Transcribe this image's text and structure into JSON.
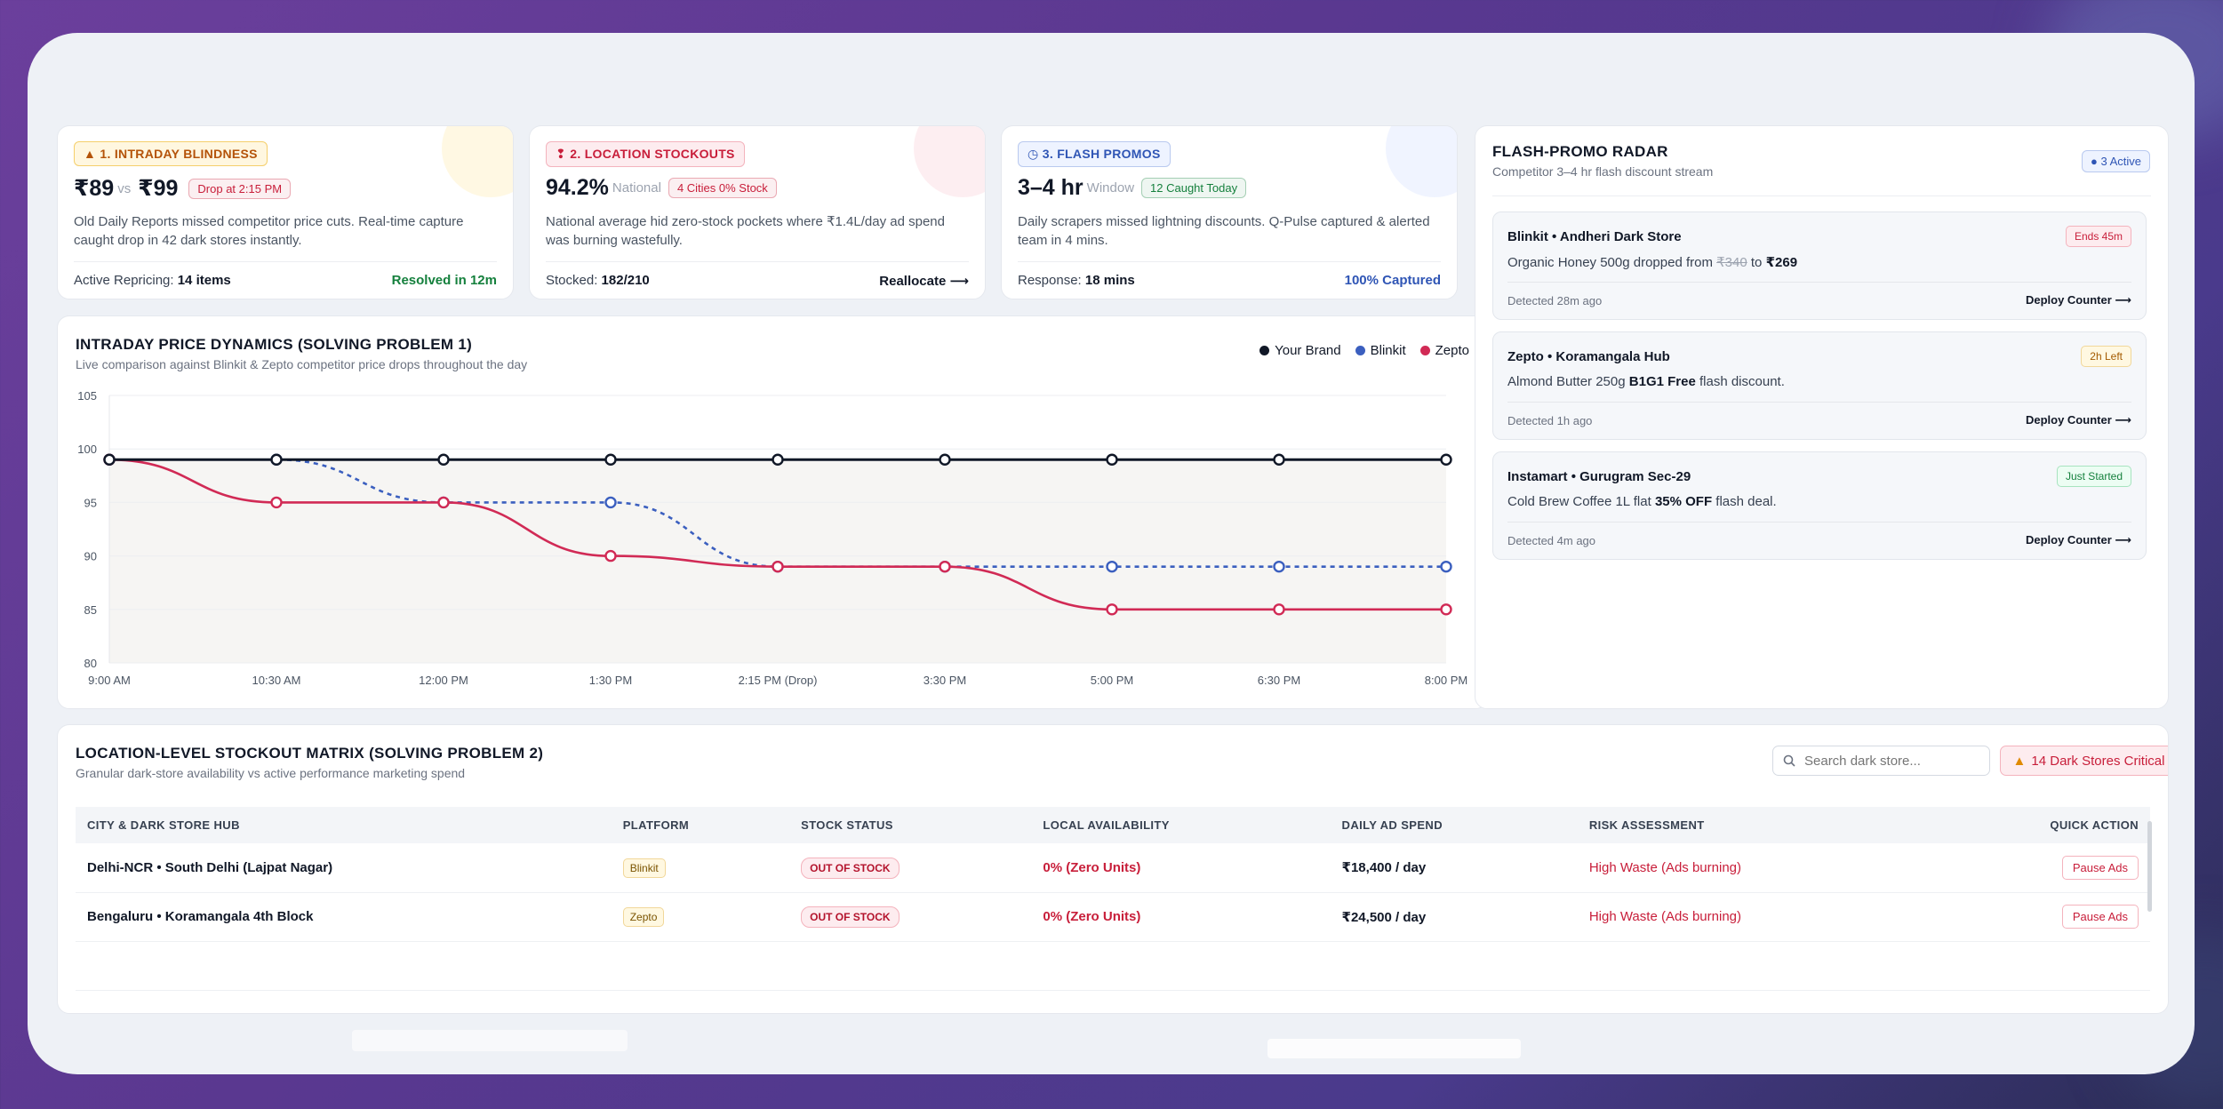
{
  "cards": [
    {
      "tag": "1. INTRADAY BLINDNESS",
      "tag_color": "#b45309",
      "tag_bg": "#fff7e0",
      "tag_border": "#f5cf6b",
      "metric": "₹89",
      "vs": "vs",
      "metric2": "₹99",
      "pill": "Drop at 2:15 PM",
      "pill_color": "#c81e3a",
      "desc": "Old Daily Reports missed competitor price cuts. Real-time capture caught drop in 42 dark stores instantly.",
      "foot_label": "Active Repricing:",
      "foot_value": "14 items",
      "foot_right": "Resolved in 12m",
      "foot_right_color": "#15803d"
    },
    {
      "tag": "2. LOCATION STOCKOUTS",
      "tag_color": "#c81e3a",
      "tag_bg": "#fdecef",
      "tag_border": "#f4b3bd",
      "metric": "94.2%",
      "vs": "National",
      "metric2": "",
      "pill": "4 Cities 0% Stock",
      "pill_color": "#c81e3a",
      "desc": "National average hid zero-stock pockets where ₹1.4L/day ad spend was burning wastefully.",
      "foot_label": "Stocked:",
      "foot_value": "182/210",
      "foot_right": "Reallocate ⟶",
      "foot_right_color": "#111827"
    },
    {
      "tag": "3. FLASH PROMOS",
      "tag_color": "#2f55b5",
      "tag_bg": "#eef3ff",
      "tag_border": "#b9c9ef",
      "metric": "3–4 hr",
      "vs": "Window",
      "metric2": "",
      "pill": "12 Caught Today",
      "pill_color": "#15803d",
      "desc": "Daily scrapers missed lightning discounts. Q-Pulse captured & alerted team in 4 mins.",
      "foot_label": "Response:",
      "foot_value": "18 mins",
      "foot_right": "100% Captured",
      "foot_right_color": "#2f55b5"
    }
  ],
  "chart_panel": {
    "title": "INTRADAY PRICE DYNAMICS (SOLVING PROBLEM 1)",
    "subtitle": "Live comparison against Blinkit & Zepto competitor price drops throughout the day"
  },
  "chart_data": {
    "type": "line",
    "categories": [
      "9:00 AM",
      "10:30 AM",
      "12:00 PM",
      "1:30 PM",
      "2:15 PM (Drop)",
      "3:30 PM",
      "5:00 PM",
      "6:30 PM",
      "8:00 PM"
    ],
    "ylim": [
      80,
      105
    ],
    "yticks": [
      80,
      85,
      90,
      95,
      100,
      105
    ],
    "grid": true,
    "legend_position": "top-right",
    "series": [
      {
        "name": "Your Brand",
        "color": "#111827",
        "style": "solid",
        "values": [
          99,
          99,
          99,
          99,
          99,
          99,
          99,
          99,
          99
        ]
      },
      {
        "name": "Blinkit",
        "color": "#3b5fbf",
        "style": "dashed",
        "values": [
          99,
          99,
          95,
          95,
          89,
          89,
          89,
          89,
          89
        ]
      },
      {
        "name": "Zepto",
        "color": "#d12a55",
        "style": "solid",
        "values": [
          99,
          95,
          95,
          90,
          89,
          89,
          85,
          85,
          85
        ]
      }
    ]
  },
  "radar": {
    "title": "FLASH-PROMO RADAR",
    "subtitle": "Competitor 3–4 hr flash discount stream",
    "active_badge": "● 3 Active",
    "alerts": [
      {
        "title": "Blinkit • Andheri Dark Store",
        "badge": "Ends 45m",
        "badge_color": "#c81e3a",
        "badge_bg": "#fdecef",
        "badge_border": "#f4b3bd",
        "msg_pre": "Organic Honey 500g dropped from ",
        "msg_strike": "₹340",
        "msg_mid": " to ",
        "msg_bold": "₹269",
        "msg_post": "",
        "ago": "Detected 28m ago",
        "action": "Deploy Counter ⟶"
      },
      {
        "title": "Zepto • Koramangala Hub",
        "badge": "2h Left",
        "badge_color": "#a35a00",
        "badge_bg": "#fff8e1",
        "badge_border": "#f1d79a",
        "msg_pre": "Almond Butter 250g ",
        "msg_strike": "",
        "msg_mid": "",
        "msg_bold": "B1G1 Free",
        "msg_post": " flash discount.",
        "ago": "Detected 1h ago",
        "action": "Deploy Counter ⟶"
      },
      {
        "title": "Instamart • Gurugram Sec-29",
        "badge": "Just Started",
        "badge_color": "#15803d",
        "badge_bg": "#ecfdf3",
        "badge_border": "#a7e3bf",
        "msg_pre": "Cold Brew Coffee 1L flat ",
        "msg_strike": "",
        "msg_mid": "",
        "msg_bold": "35% OFF",
        "msg_post": " flash deal.",
        "ago": "Detected 4m ago",
        "action": "Deploy Counter ⟶"
      }
    ]
  },
  "matrix": {
    "title": "LOCATION-LEVEL STOCKOUT MATRIX (SOLVING PROBLEM 2)",
    "subtitle": "Granular dark-store availability vs active performance marketing spend",
    "search_placeholder": "Search dark store...",
    "critical": "14 Dark Stores Critical",
    "columns": [
      "CITY & DARK STORE HUB",
      "PLATFORM",
      "STOCK STATUS",
      "LOCAL AVAILABILITY",
      "DAILY AD SPEND",
      "RISK ASSESSMENT",
      "QUICK ACTION"
    ],
    "rows": [
      {
        "hub": "Delhi-NCR • South Delhi (Lajpat Nagar)",
        "platform": "Blinkit",
        "status": "OUT OF STOCK",
        "availability": "0% (Zero Units)",
        "spend": "₹18,400 / day",
        "risk": "High Waste (Ads burning)",
        "action": "Pause Ads"
      },
      {
        "hub": "Bengaluru • Koramangala 4th Block",
        "platform": "Zepto",
        "status": "OUT OF STOCK",
        "availability": "0% (Zero Units)",
        "spend": "₹24,500 / day",
        "risk": "High Waste (Ads burning)",
        "action": "Pause Ads"
      }
    ]
  }
}
